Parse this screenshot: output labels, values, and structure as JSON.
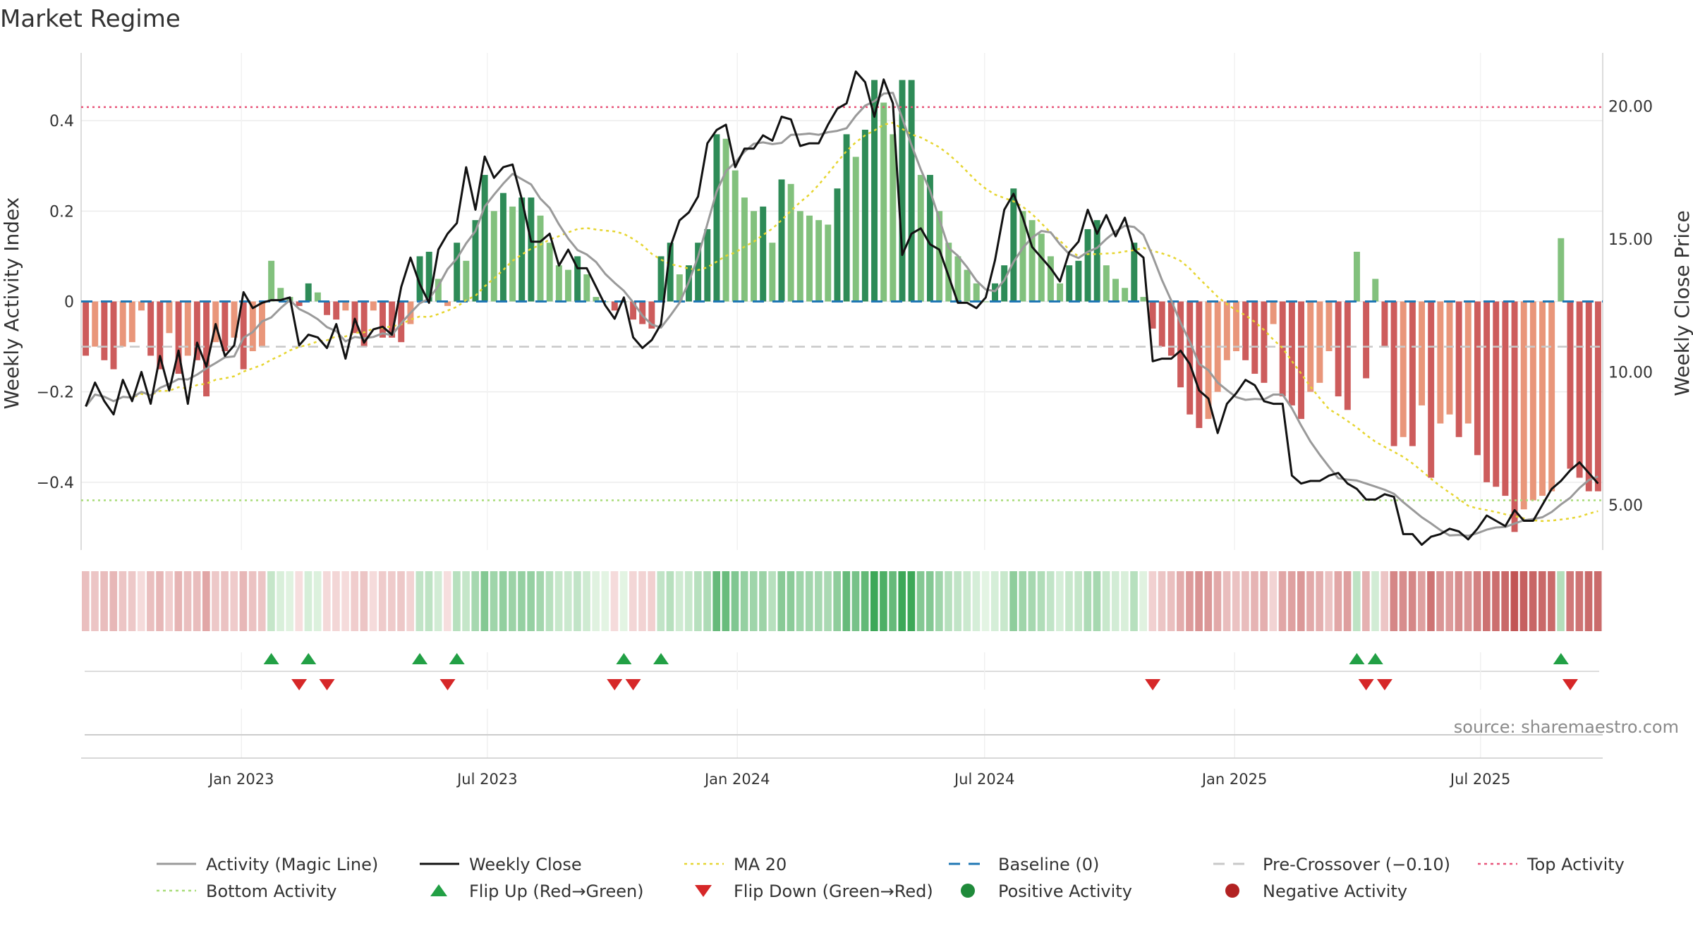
{
  "chart_data": {
    "type": "combo",
    "title": "Market Regime",
    "source": "source: sharemaestro.com",
    "y_left": {
      "label": "Weekly Activity Index",
      "range": [
        -0.55,
        0.55
      ],
      "ticks": [
        0.4,
        0.2,
        0,
        -0.2,
        -0.4
      ],
      "tick_labels": [
        "0.4",
        "0.2",
        "0",
        "−0.2",
        "−0.4"
      ]
    },
    "y_right": {
      "label": "Weekly Close Price",
      "range": [
        3.3,
        22.0
      ],
      "ticks": [
        20,
        15,
        10,
        5
      ],
      "tick_labels": [
        "20.00",
        "15.00",
        "10.00",
        "5.00"
      ]
    },
    "x": {
      "start": "2022-09-05",
      "end": "2025-09-29",
      "tick_dates": [
        "2023-01-01",
        "2023-07-01",
        "2024-01-01",
        "2024-07-01",
        "2025-01-01",
        "2025-07-01"
      ],
      "tick_labels": [
        "Jan 2023",
        "Jul 2023",
        "Jan 2024",
        "Jul 2024",
        "Jan 2025",
        "Jul 2025"
      ]
    },
    "reference_lines": {
      "top_activity": 0.43,
      "bottom_activity": -0.44,
      "baseline": 0,
      "pre_crossover": -0.1
    },
    "colors": {
      "pos_dark": "#2e8b57",
      "pos_light": "#82c17d",
      "neg_dark": "#cd5c5c",
      "neg_light": "#e9967a",
      "close": "#111111",
      "magic": "#9a9a9a",
      "ma20": "#e6d531",
      "baseline": "#1f77b4",
      "top": "#e8557a",
      "bottom": "#a8dc78",
      "pre": "#c8c8c8",
      "flip_up": "#22a045",
      "flip_down": "#d62728",
      "pos_dot": "#1f8a3a",
      "neg_dot": "#b22222"
    },
    "activity": [
      -0.12,
      -0.1,
      -0.13,
      -0.15,
      -0.1,
      -0.09,
      -0.02,
      -0.12,
      -0.15,
      -0.07,
      -0.16,
      -0.12,
      -0.13,
      -0.21,
      -0.09,
      -0.11,
      -0.08,
      -0.15,
      -0.11,
      -0.1,
      0.09,
      0.03,
      0.01,
      -0.01,
      0.04,
      0.02,
      -0.03,
      -0.04,
      -0.02,
      -0.07,
      -0.1,
      -0.02,
      -0.08,
      -0.08,
      -0.09,
      -0.05,
      0.1,
      0.11,
      0.05,
      -0.01,
      0.13,
      0.09,
      0.18,
      0.28,
      0.2,
      0.24,
      0.21,
      0.23,
      0.23,
      0.19,
      0.13,
      0.08,
      0.07,
      0.1,
      0.06,
      0.01,
      0.0,
      -0.02,
      0.0,
      -0.04,
      -0.05,
      -0.06,
      0.1,
      0.13,
      0.06,
      0.08,
      0.13,
      0.16,
      0.37,
      0.36,
      0.29,
      0.23,
      0.2,
      0.21,
      0.13,
      0.27,
      0.26,
      0.2,
      0.19,
      0.18,
      0.17,
      0.25,
      0.37,
      0.32,
      0.38,
      0.49,
      0.44,
      0.37,
      0.49,
      0.49,
      0.28,
      0.28,
      0.2,
      0.13,
      0.1,
      0.07,
      0.04,
      0.0,
      0.04,
      0.08,
      0.25,
      0.2,
      0.18,
      0.15,
      0.1,
      0.04,
      0.08,
      0.09,
      0.16,
      0.18,
      0.08,
      0.05,
      0.03,
      0.13,
      0.01,
      -0.06,
      -0.1,
      -0.12,
      -0.19,
      -0.25,
      -0.28,
      -0.26,
      -0.2,
      -0.13,
      -0.11,
      -0.13,
      -0.16,
      -0.18,
      -0.05,
      -0.21,
      -0.23,
      -0.26,
      -0.2,
      -0.18,
      -0.11,
      -0.21,
      -0.24,
      0.11,
      -0.17,
      0.05,
      -0.1,
      -0.32,
      -0.3,
      -0.32,
      -0.23,
      -0.39,
      -0.27,
      -0.25,
      -0.3,
      -0.27,
      -0.34,
      -0.4,
      -0.41,
      -0.43,
      -0.51,
      -0.46,
      -0.44,
      -0.43,
      -0.42,
      0.14,
      -0.37,
      -0.39,
      -0.42,
      -0.42
    ],
    "close_price": [
      8.7,
      9.6,
      8.9,
      8.4,
      9.7,
      8.9,
      10.0,
      8.8,
      10.6,
      9.3,
      10.8,
      8.8,
      11.1,
      10.2,
      11.8,
      10.6,
      11.0,
      13.0,
      12.4,
      12.6,
      12.7,
      12.7,
      12.8,
      11.0,
      11.4,
      11.3,
      10.9,
      11.8,
      10.5,
      12.0,
      11.1,
      11.6,
      11.7,
      11.4,
      13.2,
      14.3,
      13.3,
      12.6,
      14.6,
      15.2,
      15.6,
      17.7,
      16.1,
      18.1,
      17.3,
      17.7,
      17.8,
      16.5,
      14.9,
      14.9,
      15.2,
      14.0,
      14.6,
      13.9,
      13.9,
      13.2,
      12.5,
      12.0,
      12.8,
      11.3,
      10.9,
      11.2,
      11.8,
      14.7,
      15.7,
      16.0,
      16.6,
      18.6,
      19.1,
      19.3,
      17.7,
      18.4,
      18.4,
      18.9,
      18.7,
      19.6,
      19.5,
      18.5,
      18.6,
      18.6,
      19.3,
      19.9,
      20.1,
      21.3,
      20.9,
      19.6,
      21.0,
      20.1,
      14.4,
      15.2,
      15.4,
      14.8,
      14.6,
      13.6,
      12.6,
      12.6,
      12.4,
      12.8,
      14.2,
      16.1,
      16.7,
      15.8,
      14.7,
      14.3,
      13.9,
      13.4,
      14.5,
      14.9,
      16.1,
      15.2,
      15.9,
      15.1,
      15.8,
      14.6,
      14.3,
      10.4,
      10.5,
      10.5,
      10.8,
      10.3,
      9.3,
      9.0,
      7.7,
      8.8,
      9.2,
      9.7,
      9.5,
      8.9,
      8.8,
      8.8,
      6.1,
      5.8,
      5.9,
      5.9,
      6.1,
      6.2,
      5.8,
      5.6,
      5.2,
      5.2,
      5.4,
      5.3,
      3.9,
      3.9,
      3.5,
      3.8,
      3.9,
      4.1,
      4.0,
      3.7,
      4.1,
      4.6,
      4.4,
      4.2,
      4.8,
      4.4,
      4.4,
      5.0,
      5.6,
      5.9,
      6.3,
      6.6,
      6.2,
      5.8
    ]
  },
  "legend": {
    "items": [
      {
        "label": "Activity (Magic Line)",
        "kind": "line",
        "color": "#9a9a9a"
      },
      {
        "label": "Weekly Close",
        "kind": "line",
        "color": "#111111"
      },
      {
        "label": "MA 20",
        "kind": "dotted",
        "color": "#e6d531"
      },
      {
        "label": "Baseline (0)",
        "kind": "dashed",
        "color": "#1f77b4"
      },
      {
        "label": "Pre-Crossover (−0.10)",
        "kind": "dashed",
        "color": "#c8c8c8"
      },
      {
        "label": "Top Activity",
        "kind": "dotted",
        "color": "#e8557a"
      },
      {
        "label": "Bottom Activity",
        "kind": "dotted",
        "color": "#a8dc78"
      },
      {
        "label": "Flip Up (Red→Green)",
        "kind": "tri-up",
        "color": "#22a045"
      },
      {
        "label": "Flip Down (Green→Red)",
        "kind": "tri-down",
        "color": "#d62728"
      },
      {
        "label": "Positive Activity",
        "kind": "dot",
        "color": "#1f8a3a"
      },
      {
        "label": "Negative Activity",
        "kind": "dot",
        "color": "#b22222"
      }
    ]
  }
}
